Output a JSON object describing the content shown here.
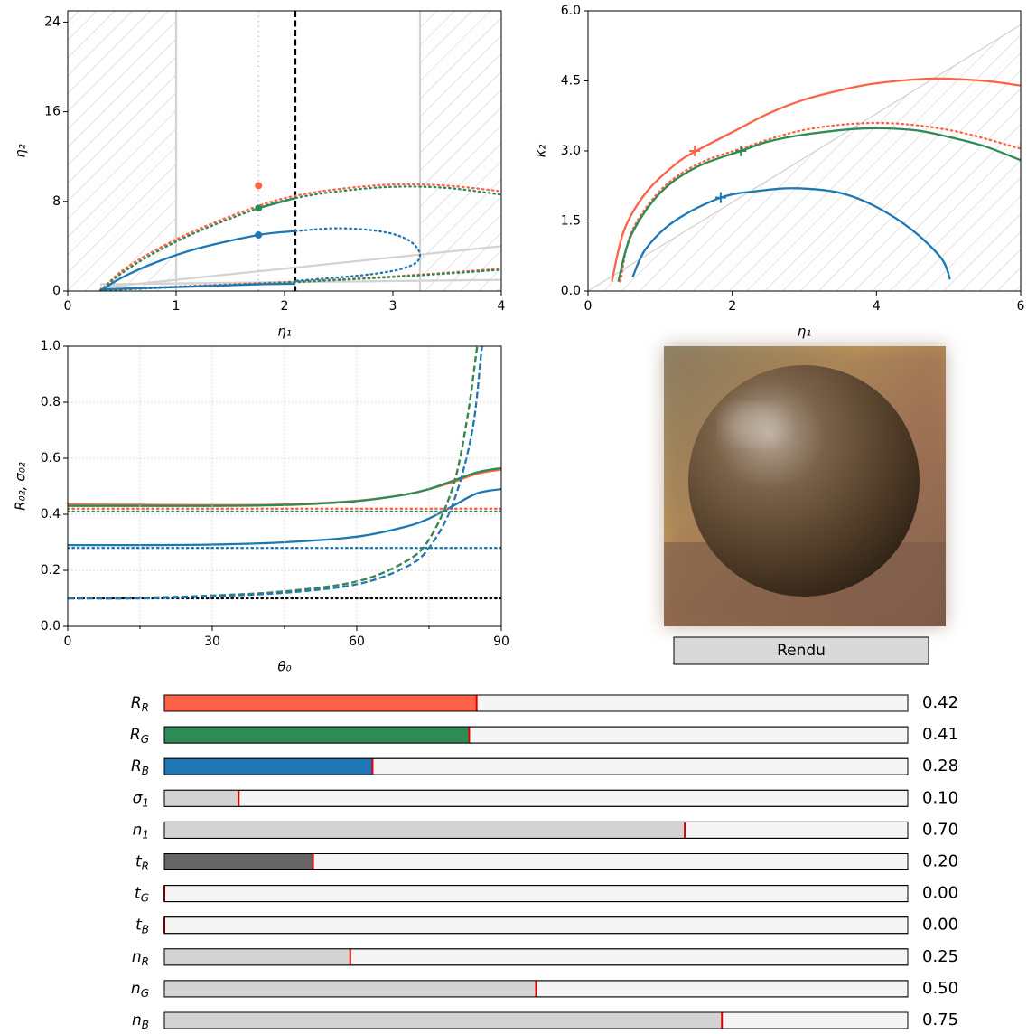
{
  "chart_data": [
    {
      "type": "line",
      "x_label": "η₁",
      "y_label": "η₂",
      "xlim": [
        0,
        4
      ],
      "xticks": [
        0,
        1,
        2,
        3,
        4
      ],
      "ylim": [
        0,
        25
      ],
      "yticks": [
        0,
        8,
        16,
        24
      ],
      "hatch_regions": [
        [
          0,
          1
        ],
        [
          3.25,
          4
        ]
      ],
      "vlines": [
        {
          "x": 1,
          "color": "#d3d3d3",
          "style": "solid"
        },
        {
          "x": 3.25,
          "color": "#d3d3d3",
          "style": "solid"
        },
        {
          "x": 1.76,
          "color": "#d3d3d3",
          "style": "dotted"
        },
        {
          "x": 2.1,
          "color": "#000000",
          "style": "dashed"
        }
      ],
      "series": [
        {
          "color": "#d3d3d3",
          "style": "solid",
          "x": [
            0.3,
            4
          ],
          "values": [
            0.3,
            4.0
          ]
        },
        {
          "color": "#d3d3d3",
          "style": "solid",
          "x": [
            0.3,
            4
          ],
          "values": [
            0.6,
            1.0
          ]
        },
        {
          "color": "#ff6347",
          "style": "dotted",
          "x": [
            0.3,
            0.5,
            0.8,
            1.2,
            1.76,
            2.1,
            2.5,
            3,
            3.5,
            4
          ],
          "values": [
            0,
            1.8,
            3.6,
            5.5,
            7.6,
            8.5,
            9.1,
            9.5,
            9.4,
            8.9
          ]
        },
        {
          "color": "#ff6347",
          "style": "dotted",
          "x": [
            0.3,
            1,
            2,
            3,
            4
          ],
          "values": [
            0.1,
            0.4,
            0.8,
            1.3,
            2.0
          ]
        },
        {
          "color": "#2e8b57",
          "style": "dotted",
          "x": [
            0.3,
            0.5,
            0.8,
            1.2,
            1.76,
            2.1,
            2.5,
            3,
            3.5,
            4
          ],
          "values": [
            0,
            1.6,
            3.4,
            5.3,
            7.4,
            8.3,
            8.9,
            9.3,
            9.2,
            8.6
          ]
        },
        {
          "color": "#2e8b57",
          "style": "dotted",
          "x": [
            0.3,
            1,
            2,
            3,
            4
          ],
          "values": [
            0.05,
            0.35,
            0.75,
            1.25,
            1.9
          ]
        },
        {
          "color": "#2e8b57",
          "style": "solid",
          "x": [
            1.76,
            2.1
          ],
          "values": [
            7.4,
            8.3
          ]
        },
        {
          "color": "#1f77b4",
          "style": "solid",
          "x": [
            0.3,
            0.5,
            0.8,
            1.2,
            1.76,
            2.1
          ],
          "values": [
            0,
            1.2,
            2.5,
            3.8,
            5.0,
            5.35
          ]
        },
        {
          "color": "#1f77b4",
          "style": "dotted",
          "x": [
            2.1,
            2.5,
            2.9,
            3.15,
            3.25,
            3.15,
            2.8,
            2.1
          ],
          "values": [
            5.35,
            5.6,
            5.3,
            4.5,
            3.2,
            2.2,
            1.5,
            0.9
          ]
        },
        {
          "color": "#1f77b4",
          "style": "solid",
          "x": [
            0.3,
            1,
            1.76,
            2.1
          ],
          "values": [
            0.15,
            0.35,
            0.6,
            0.65
          ]
        },
        {
          "color": "#ff6347",
          "style": "points",
          "x": [
            1.76
          ],
          "values": [
            9.4
          ]
        },
        {
          "color": "#2e8b57",
          "style": "points",
          "x": [
            1.76
          ],
          "values": [
            7.4
          ]
        },
        {
          "color": "#1f77b4",
          "style": "points",
          "x": [
            1.76
          ],
          "values": [
            5.0
          ]
        }
      ]
    },
    {
      "type": "line",
      "x_label": "η₁",
      "y_label": "κ₂",
      "xlim": [
        0,
        6
      ],
      "xticks": [
        0,
        2,
        4,
        6
      ],
      "ylim": [
        0,
        6
      ],
      "yticks": [
        {
          "value": 0,
          "label": "0.0"
        },
        {
          "value": 1.5,
          "label": "1.5"
        },
        {
          "value": 3,
          "label": "3.0"
        },
        {
          "value": 4.5,
          "label": "4.5"
        },
        {
          "value": 6,
          "label": "6.0"
        }
      ],
      "hatch_boundary": {
        "x": [
          0,
          6
        ],
        "values": [
          0,
          5.7
        ]
      },
      "series": [
        {
          "color": "#ff6347",
          "style": "solid",
          "x": [
            0.33,
            0.5,
            0.8,
            1.2,
            1.5,
            2,
            2.5,
            3,
            3.5,
            4,
            4.8,
            5.5,
            6
          ],
          "values": [
            0.2,
            1.3,
            2.1,
            2.7,
            3.0,
            3.4,
            3.8,
            4.1,
            4.3,
            4.45,
            4.55,
            4.5,
            4.4
          ]
        },
        {
          "color": "#ff6347",
          "style": "dotted",
          "x": [
            0.45,
            0.6,
            1,
            1.5,
            2.12,
            3,
            4,
            5,
            6
          ],
          "values": [
            0.2,
            1.25,
            2.15,
            2.7,
            3.05,
            3.45,
            3.6,
            3.45,
            3.05
          ]
        },
        {
          "color": "#2e8b57",
          "style": "solid",
          "x": [
            0.42,
            0.6,
            1,
            1.5,
            2.12,
            2.5,
            3,
            3.8,
            4.5,
            5,
            5.5,
            6
          ],
          "values": [
            0.2,
            1.2,
            2.1,
            2.65,
            3.0,
            3.2,
            3.35,
            3.48,
            3.45,
            3.3,
            3.1,
            2.8
          ]
        },
        {
          "color": "#1f77b4",
          "style": "solid",
          "x": [
            0.62,
            0.8,
            1.2,
            1.84,
            2.4,
            2.9,
            3.5,
            4,
            4.5,
            4.9,
            5.02
          ],
          "values": [
            0.3,
            0.9,
            1.5,
            2.0,
            2.15,
            2.2,
            2.1,
            1.8,
            1.3,
            0.7,
            0.25
          ]
        },
        {
          "color": "#ff6347",
          "style": "plus",
          "x": [
            1.48
          ],
          "values": [
            3.0
          ]
        },
        {
          "color": "#2e8b57",
          "style": "plus",
          "x": [
            2.12
          ],
          "values": [
            3.0
          ]
        },
        {
          "color": "#1f77b4",
          "style": "plus",
          "x": [
            1.84
          ],
          "values": [
            2.0
          ]
        }
      ]
    },
    {
      "type": "line",
      "x_label": "θ₀",
      "y_label": "R₀₂, σ₀₂",
      "grid": true,
      "xlim": [
        0,
        90
      ],
      "xticks": [
        0,
        30,
        60,
        90
      ],
      "xticks_minor": [
        15,
        45,
        75
      ],
      "ylim": [
        0,
        1
      ],
      "yticks": [
        {
          "value": 0,
          "label": "0.0"
        },
        {
          "value": 0.2,
          "label": "0.2"
        },
        {
          "value": 0.4,
          "label": "0.4"
        },
        {
          "value": 0.6,
          "label": "0.6"
        },
        {
          "value": 0.8,
          "label": "0.8"
        },
        {
          "value": 1,
          "label": "1.0"
        }
      ],
      "series": [
        {
          "color": "#ff6347",
          "style": "solid",
          "x": [
            0,
            15,
            30,
            45,
            60,
            70,
            75,
            80,
            85,
            90
          ],
          "values": [
            0.435,
            0.434,
            0.433,
            0.435,
            0.448,
            0.47,
            0.49,
            0.515,
            0.545,
            0.56
          ]
        },
        {
          "color": "#2e8b57",
          "style": "solid",
          "x": [
            0,
            15,
            30,
            45,
            60,
            70,
            75,
            80,
            85,
            90
          ],
          "values": [
            0.43,
            0.43,
            0.43,
            0.433,
            0.447,
            0.47,
            0.49,
            0.52,
            0.55,
            0.565
          ]
        },
        {
          "color": "#1f77b4",
          "style": "solid",
          "x": [
            0,
            15,
            30,
            45,
            60,
            70,
            75,
            80,
            85,
            90
          ],
          "values": [
            0.29,
            0.29,
            0.292,
            0.3,
            0.32,
            0.355,
            0.385,
            0.43,
            0.475,
            0.49
          ]
        },
        {
          "color": "#ff6347",
          "style": "dotted",
          "x": [
            0,
            90
          ],
          "values": [
            0.42,
            0.42
          ]
        },
        {
          "color": "#2e8b57",
          "style": "dotted",
          "x": [
            0,
            90
          ],
          "values": [
            0.41,
            0.41
          ]
        },
        {
          "color": "#1f77b4",
          "style": "dotted",
          "x": [
            0,
            90
          ],
          "values": [
            0.28,
            0.28
          ]
        },
        {
          "color": "#000000",
          "style": "dotted",
          "x": [
            0,
            90
          ],
          "values": [
            0.1,
            0.1
          ]
        },
        {
          "color": "#ff6347",
          "style": "dashed",
          "x": [
            0,
            15,
            30,
            45,
            60,
            70,
            75,
            80,
            83,
            85,
            86
          ],
          "values": [
            0.1,
            0.102,
            0.11,
            0.125,
            0.16,
            0.23,
            0.31,
            0.5,
            0.75,
            1.0,
            1.1
          ]
        },
        {
          "color": "#2e8b57",
          "style": "dashed",
          "x": [
            0,
            15,
            30,
            45,
            60,
            70,
            75,
            80,
            83,
            85,
            86
          ],
          "values": [
            0.1,
            0.102,
            0.11,
            0.125,
            0.16,
            0.23,
            0.31,
            0.5,
            0.75,
            1.0,
            1.1
          ]
        },
        {
          "color": "#1f77b4",
          "style": "dashed",
          "x": [
            0,
            15,
            30,
            45,
            60,
            70,
            75,
            80,
            84,
            86,
            87
          ],
          "values": [
            0.1,
            0.1,
            0.108,
            0.12,
            0.15,
            0.21,
            0.28,
            0.44,
            0.7,
            1.0,
            1.1
          ]
        }
      ]
    }
  ],
  "button": "Rendu",
  "slider_range": [
    0,
    1
  ],
  "sliders": [
    {
      "label": [
        "R",
        "R"
      ],
      "value": 0.42,
      "color": "#ff6347"
    },
    {
      "label": [
        "R",
        "G"
      ],
      "value": 0.41,
      "color": "#2e8b57"
    },
    {
      "label": [
        "R",
        "B"
      ],
      "value": 0.28,
      "color": "#1f77b4"
    },
    {
      "label": [
        "σ",
        "1"
      ],
      "value": 0.1,
      "value_label": "0.10",
      "color": "#d3d3d3"
    },
    {
      "label": [
        "n",
        "1"
      ],
      "value": 0.7,
      "value_label": "0.70",
      "color": "#d3d3d3"
    },
    {
      "label": [
        "t",
        "R"
      ],
      "value": 0.2,
      "value_label": "0.20",
      "color": "#666666"
    },
    {
      "label": [
        "t",
        "G"
      ],
      "value": 0,
      "value_label": "0.00",
      "color": "#d3d3d3"
    },
    {
      "label": [
        "t",
        "B"
      ],
      "value": 0,
      "value_label": "0.00",
      "color": "#d3d3d3"
    },
    {
      "label": [
        "n",
        "R"
      ],
      "value": 0.25,
      "color": "#d3d3d3"
    },
    {
      "label": [
        "n",
        "G"
      ],
      "value": 0.5,
      "value_label": "0.50",
      "color": "#d3d3d3"
    },
    {
      "label": [
        "n",
        "B"
      ],
      "value": 0.75,
      "color": "#d3d3d3"
    }
  ]
}
